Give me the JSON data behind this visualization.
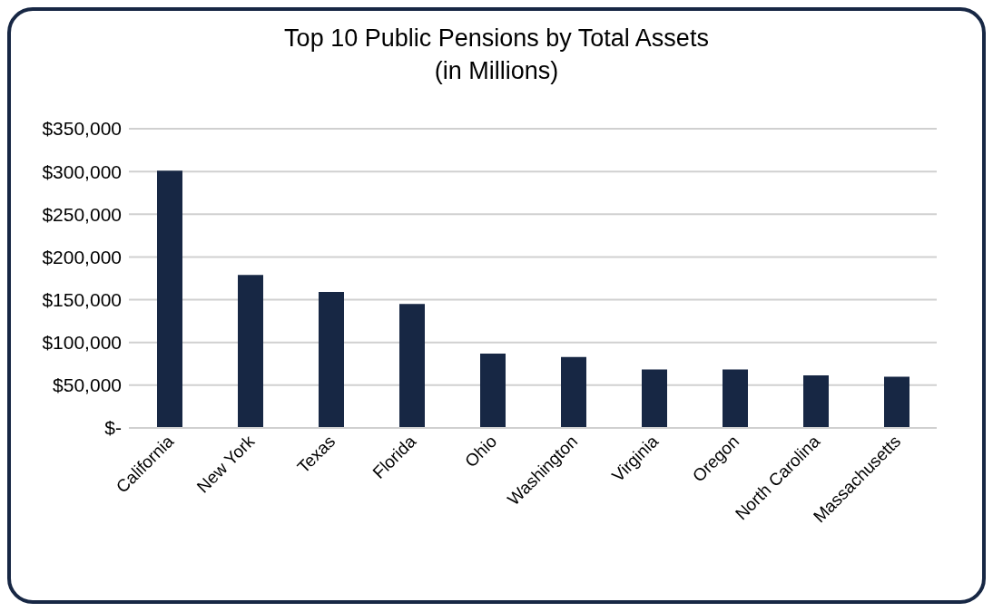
{
  "chart_data": {
    "type": "bar",
    "title": "Top 10 Public Pensions by Total Assets\n(in Millions)",
    "categories": [
      "California",
      "New York",
      "Texas",
      "Florida",
      "Ohio",
      "Washington",
      "Virginia",
      "Oregon",
      "North Carolina",
      "Massachusetts"
    ],
    "values": [
      301000,
      179000,
      159000,
      145000,
      87000,
      83000,
      68500,
      68500,
      61500,
      60000
    ],
    "color": "#172744",
    "ylim": [
      0,
      350000
    ],
    "yticks": [
      {
        "value": 0,
        "label": "$-"
      },
      {
        "value": 50000,
        "label": "$50,000"
      },
      {
        "value": 100000,
        "label": "$100,000"
      },
      {
        "value": 150000,
        "label": "$150,000"
      },
      {
        "value": 200000,
        "label": "$200,000"
      },
      {
        "value": 250000,
        "label": "$250,000"
      },
      {
        "value": 300000,
        "label": "$300,000"
      },
      {
        "value": 350000,
        "label": "$350,000"
      }
    ],
    "grid": "y"
  }
}
